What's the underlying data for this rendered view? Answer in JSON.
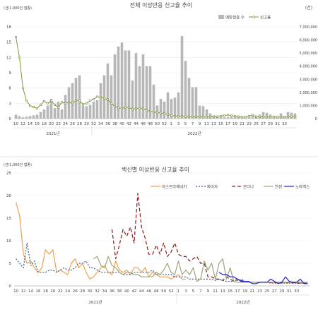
{
  "chart_data": [
    {
      "type": "bar",
      "title": "전체 이상반응 신고율 추이",
      "ylabel": "(건/1,000건 접종)",
      "y2label": "(건)",
      "ylim": [
        0,
        18
      ],
      "y_ticks": [
        "0",
        "3",
        "6",
        "9",
        "12",
        "15",
        "18"
      ],
      "y2lim": [
        0,
        7000000
      ],
      "y2_ticks": [
        "0",
        "1,000,000",
        "2,000,000",
        "3,000,000",
        "4,000,000",
        "5,000,000",
        "6,000,000",
        "7,000,000"
      ],
      "legend": [
        "예방접종 수",
        "신고율"
      ],
      "legend_position": "top-right",
      "x_tick_labels": [
        "10",
        "12",
        "14",
        "16",
        "18",
        "20",
        "22",
        "24",
        "26",
        "28",
        "30",
        "32",
        "34",
        "36",
        "38",
        "40",
        "42",
        "44",
        "46",
        "48",
        "50",
        "52",
        "1",
        "3",
        "5",
        "7",
        "9",
        "11",
        "13",
        "15",
        "17",
        "19",
        "21",
        "23",
        "25",
        "27",
        "29",
        "31",
        "33"
      ],
      "year_labels": [
        "2021년",
        "2022년"
      ],
      "series": [
        {
          "name": "예방접종 수",
          "kind": "bar",
          "color": "#b7b7b7",
          "values": [
            300000,
            200000,
            100000,
            150000,
            200000,
            250000,
            300000,
            500000,
            700000,
            1000000,
            1500000,
            800000,
            1300000,
            700000,
            1800000,
            2400000,
            2700000,
            3100000,
            3300000,
            1000000,
            950000,
            1050000,
            1300000,
            1400000,
            2700000,
            3300000,
            4200000,
            3300000,
            4900000,
            5500000,
            5800000,
            5200000,
            5200000,
            2900000,
            5000000,
            4000000,
            4900000,
            4000000,
            4000000,
            2600000,
            1000000,
            1500000,
            1300000,
            2000000,
            1500000,
            1600000,
            2000000,
            6300000,
            4400000,
            3100000,
            2400000,
            2400000,
            1000000,
            950000,
            700000,
            400000,
            250000,
            200000,
            150000,
            100000,
            100000,
            150000,
            200000,
            200000,
            100000,
            100000,
            100000,
            200000,
            150000,
            300000,
            500000,
            450000,
            300000,
            200000,
            150000,
            400000,
            200000,
            500000,
            450000,
            400000
          ]
        },
        {
          "name": "신고율",
          "kind": "line",
          "color": "#6f8f2a",
          "values": [
            16.0,
            12.0,
            6.0,
            3.5,
            2.5,
            2.3,
            2.0,
            2.7,
            3.4,
            3.0,
            3.5,
            2.7,
            2.2,
            3.2,
            3.0,
            3.2,
            3.1,
            3.5,
            3.5,
            2.8,
            3.0,
            3.5,
            3.8,
            4.3,
            4.2,
            4.0,
            3.7,
            3.0,
            2.4,
            2.1,
            2.0,
            2.2,
            2.2,
            1.8,
            2.0,
            2.0,
            2.0,
            1.6,
            1.5,
            1.3,
            1.2,
            1.1,
            1.0,
            0.8,
            0.6,
            0.5,
            0.5,
            0.45,
            0.4,
            0.4,
            0.35,
            0.35,
            0.35,
            0.3,
            0.3,
            0.3,
            0.35,
            0.4,
            0.5,
            0.6,
            0.7,
            0.6,
            0.5,
            0.4,
            0.3,
            0.3,
            0.5,
            0.7,
            0.4,
            0.35,
            0.3,
            0.3,
            0.3,
            0.3,
            0.3,
            0.3,
            0.3,
            0.3,
            0.4,
            0.3
          ]
        }
      ]
    },
    {
      "type": "line",
      "title": "백신별 이상반응 신고율 추이",
      "ylabel": "(건/1,000건 접종)",
      "ylim": [
        0,
        25
      ],
      "y_ticks": [
        "0",
        "5",
        "10",
        "15",
        "20",
        "25"
      ],
      "legend_position": "top",
      "x_tick_labels": [
        "10",
        "12",
        "14",
        "16",
        "18",
        "20",
        "22",
        "24",
        "26",
        "28",
        "30",
        "32",
        "34",
        "36",
        "38",
        "40",
        "42",
        "44",
        "46",
        "48",
        "50",
        "52",
        "1",
        "3",
        "5",
        "7",
        "9",
        "11",
        "13",
        "15",
        "17",
        "19",
        "21",
        "23",
        "25",
        "27",
        "29",
        "31",
        "33"
      ],
      "year_labels": [
        "2021년",
        "2022년"
      ],
      "series": [
        {
          "name": "아스트라제네카",
          "color": "#f0a050",
          "dash": "solid",
          "x": [
            0,
            1,
            2,
            3,
            4,
            5,
            6,
            7,
            8,
            9,
            10,
            11,
            12,
            13,
            14,
            15,
            16,
            17,
            18,
            19,
            20,
            21,
            22,
            23,
            24,
            25,
            26,
            27,
            28,
            29,
            30,
            31,
            32,
            33,
            34,
            35,
            36,
            37,
            38,
            39,
            40,
            41,
            42,
            43,
            44,
            45,
            46
          ],
          "values": [
            18.5,
            15.5,
            7.0,
            5.0,
            5.5,
            4.0,
            3.0,
            4.0,
            8.0,
            7.0,
            8.0,
            3.0,
            3.5,
            3.0,
            2.5,
            5.0,
            6.0,
            4.0,
            5.0,
            3.0,
            1.5,
            2.0,
            3.0,
            4.0,
            4.5,
            3.0,
            2.5,
            5.5,
            3.5,
            3.0,
            3.5,
            2.5,
            4.0,
            4.0,
            3.0,
            4.0,
            2.0,
            3.0,
            2.5,
            2.0,
            2.0,
            2.0,
            1.5,
            2.0,
            2.5,
            1.5,
            1.5
          ]
        },
        {
          "name": "화이자",
          "color": "#3f5f8f",
          "dash": "2,2",
          "x": [
            0,
            1,
            2,
            3,
            4,
            5,
            6,
            7,
            8,
            9,
            10,
            11,
            12,
            13,
            14,
            15,
            16,
            17,
            18,
            19,
            20,
            21,
            22,
            23,
            24,
            25,
            26,
            27,
            28,
            29,
            30,
            31,
            32,
            33,
            34,
            35,
            36,
            37,
            38,
            39,
            40,
            41,
            42,
            43,
            44,
            45,
            46,
            47,
            48,
            49,
            50,
            51,
            52,
            53,
            54,
            55,
            56,
            57,
            58,
            59,
            60,
            61,
            62,
            63,
            64,
            65,
            66,
            67,
            68,
            69,
            70,
            71,
            72,
            73,
            74,
            75,
            76,
            77,
            78,
            79
          ],
          "values": [
            6.0,
            5.0,
            4.0,
            9.5,
            4.5,
            5.5,
            3.0,
            3.0,
            3.0,
            3.5,
            3.5,
            3.0,
            3.5,
            4.0,
            3.5,
            3.5,
            4.0,
            5.0,
            5.0,
            5.5,
            4.0,
            4.0,
            3.5,
            3.0,
            3.0,
            3.0,
            3.0,
            3.0,
            3.0,
            2.5,
            2.5,
            2.5,
            3.0,
            3.0,
            3.0,
            3.0,
            3.0,
            3.5,
            2.5,
            2.5,
            2.5,
            2.5,
            2.5,
            2.0,
            2.0,
            2.0,
            2.0,
            1.5,
            1.5,
            1.5,
            1.5,
            1.5,
            1.5,
            1.5,
            1.2,
            1.5,
            1.2,
            1.0,
            1.0,
            1.0,
            1.2,
            1.5,
            1.0,
            0.8,
            0.8,
            0.8,
            0.8,
            0.8,
            0.8,
            0.6,
            0.6,
            0.6,
            0.6,
            0.6,
            0.6,
            0.6,
            0.6,
            0.6,
            0.6,
            0.6
          ]
        },
        {
          "name": "모더나",
          "color": "#8b1a1a",
          "dash": "5,3",
          "x": [
            26,
            27,
            28,
            29,
            30,
            31,
            32,
            33,
            34,
            35,
            36,
            37,
            38,
            39,
            40,
            41,
            42,
            43,
            44,
            45,
            46,
            47,
            48,
            49,
            50,
            51,
            52,
            53,
            54,
            55,
            56,
            57,
            58,
            59,
            60,
            61,
            62,
            63,
            64,
            65,
            66,
            67,
            68,
            69,
            70,
            71,
            72,
            73,
            74,
            75,
            76,
            77,
            78,
            79
          ],
          "values": [
            12.5,
            6.0,
            9.0,
            12.5,
            11.0,
            13.0,
            9.5,
            20.5,
            13.0,
            10.5,
            7.0,
            7.0,
            9.0,
            7.0,
            9.5,
            6.5,
            7.5,
            9.5,
            7.0,
            6.5,
            6.5,
            5.5,
            6.0,
            6.5,
            5.0,
            5.0,
            2.0,
            2.0,
            1.5,
            1.5,
            1.2,
            2.0,
            1.5,
            1.0,
            1.5,
            1.2,
            1.0,
            1.0,
            0.8,
            0.8,
            0.8,
            0.8,
            0.8,
            0.7,
            0.7,
            0.7,
            0.7,
            0.7,
            0.7,
            0.7,
            0.6,
            0.6,
            0.6,
            0.6
          ]
        },
        {
          "name": "얀센",
          "color": "#9aa67a",
          "dash": "solid",
          "x": [
            21,
            22,
            23,
            24,
            25,
            26,
            27,
            28,
            29,
            30,
            31,
            32,
            33,
            34,
            35,
            36,
            37,
            38,
            39,
            40,
            41,
            42,
            43,
            44,
            45,
            46,
            47,
            48,
            49,
            50,
            51,
            52,
            53,
            54,
            55,
            56,
            57,
            58,
            59,
            60,
            61,
            62,
            63,
            64,
            65,
            66,
            67,
            68,
            69,
            70,
            71,
            72,
            73,
            74,
            75,
            76,
            77,
            78,
            79
          ],
          "values": [
            6.0,
            6.5,
            4.5,
            4.0,
            6.5,
            4.5,
            4.0,
            3.0,
            2.5,
            3.0,
            3.0,
            2.5,
            2.5,
            2.0,
            2.0,
            2.0,
            2.0,
            3.0,
            2.5,
            3.5,
            5.0,
            3.0,
            2.5,
            5.5,
            2.5,
            3.5,
            2.5,
            4.0,
            1.0,
            1.5,
            5.5,
            3.5,
            5.0,
            1.5,
            5.0,
            6.0,
            1.5,
            4.0,
            1.0,
            0.8,
            0.8,
            0.8,
            0.8,
            0.8,
            0.8,
            0.8,
            0.8,
            0.8,
            0.8,
            0.8,
            0.8,
            0.8,
            0.8,
            0.8,
            0.8,
            0.8,
            0.8,
            0.8,
            0.8
          ]
        },
        {
          "name": "노바백스",
          "color": "#1f1fc8",
          "dash": "solid",
          "x": [
            55,
            56,
            57,
            58,
            59,
            60,
            61,
            62,
            63,
            64,
            65,
            66,
            67,
            68,
            69,
            70,
            71,
            72,
            73,
            74,
            75,
            76,
            77,
            78,
            79
          ],
          "values": [
            3.0,
            2.5,
            2.5,
            2.0,
            2.0,
            1.5,
            1.0,
            1.0,
            1.0,
            0.5,
            0.5,
            0.8,
            0.8,
            0.8,
            1.5,
            1.0,
            0.5,
            0.8,
            2.0,
            1.0,
            0.8,
            0.8,
            1.5,
            0.5,
            0.5
          ]
        }
      ]
    }
  ]
}
